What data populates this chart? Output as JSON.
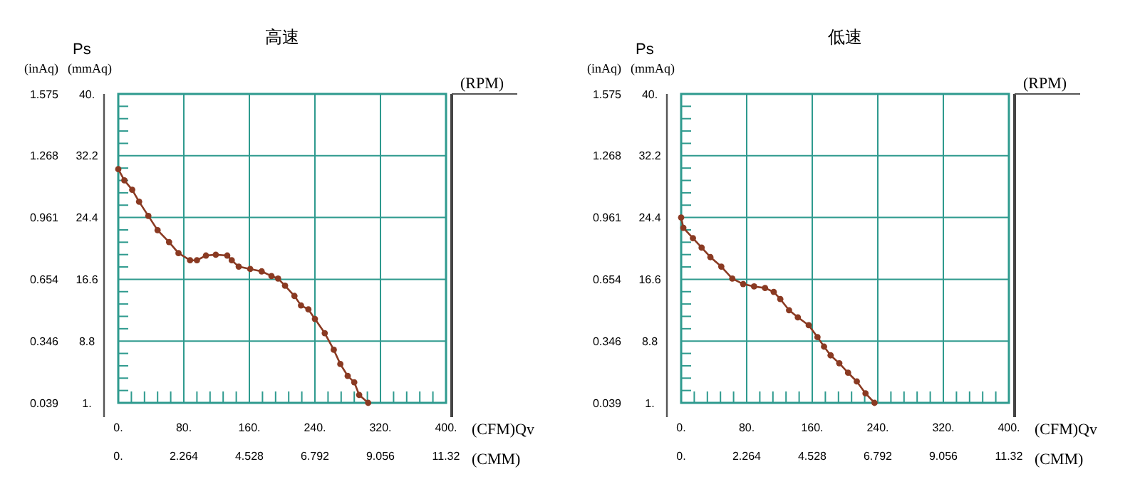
{
  "chart_data": [
    {
      "type": "line",
      "title": "高速",
      "xlabel": "(CFM)Qv",
      "x2label": "(CMM)",
      "ylabel": "(mmAq)",
      "y2label": "(inAq)",
      "annotations": [
        "Ps",
        "(RPM)"
      ],
      "grid": true,
      "marker": "circle",
      "line_style": "solid",
      "x": [
        0,
        7.4,
        17,
        25.4,
        36.7,
        48,
        62,
        73.5,
        87.6,
        96,
        107,
        119,
        133,
        138.5,
        147,
        161,
        175,
        187,
        195,
        203.5,
        215,
        223,
        232,
        240,
        252,
        263,
        271,
        280,
        288,
        294,
        305
      ],
      "series": [
        {
          "color": "#8a3a22",
          "values": [
            30.5,
            29.1,
            27.9,
            26.4,
            24.6,
            22.8,
            21.3,
            19.9,
            19.0,
            19.0,
            19.6,
            19.7,
            19.6,
            19.0,
            18.2,
            17.9,
            17.6,
            17.0,
            16.7,
            15.8,
            14.5,
            13.3,
            12.8,
            11.6,
            9.8,
            7.7,
            5.9,
            4.4,
            3.6,
            2.0,
            1.0
          ]
        }
      ],
      "xlim": [
        0,
        400
      ],
      "xticks": [
        {
          "value": 0,
          "label": "0."
        },
        {
          "value": 16,
          "label": null
        },
        {
          "value": 32,
          "label": null
        },
        {
          "value": 48,
          "label": null
        },
        {
          "value": 64,
          "label": null
        },
        {
          "value": 80,
          "label": "80."
        },
        {
          "value": 96,
          "label": null
        },
        {
          "value": 112,
          "label": null
        },
        {
          "value": 128,
          "label": null
        },
        {
          "value": 144,
          "label": null
        },
        {
          "value": 160,
          "label": "160."
        },
        {
          "value": 176,
          "label": null
        },
        {
          "value": 192,
          "label": null
        },
        {
          "value": 208,
          "label": null
        },
        {
          "value": 224,
          "label": null
        },
        {
          "value": 240,
          "label": "240."
        },
        {
          "value": 256,
          "label": null
        },
        {
          "value": 272,
          "label": null
        },
        {
          "value": 288,
          "label": null
        },
        {
          "value": 304,
          "label": null
        },
        {
          "value": 320,
          "label": "320."
        },
        {
          "value": 336,
          "label": null
        },
        {
          "value": 352,
          "label": null
        },
        {
          "value": 368,
          "label": null
        },
        {
          "value": 384,
          "label": null
        },
        {
          "value": 400,
          "label": "400."
        }
      ],
      "x2lim": [
        0,
        11.32
      ],
      "x2ticks": [
        {
          "value": 0,
          "label": "0."
        },
        2.264,
        4.528,
        6.792,
        9.056,
        11.32
      ],
      "ylim": [
        1,
        40
      ],
      "yticks": [
        {
          "value": 1,
          "label": "1."
        },
        {
          "value": 2.56,
          "label": null
        },
        {
          "value": 4.12,
          "label": null
        },
        {
          "value": 5.68,
          "label": null
        },
        {
          "value": 7.24,
          "label": null
        },
        8.8,
        {
          "value": 10.36,
          "label": null
        },
        {
          "value": 11.92,
          "label": null
        },
        {
          "value": 13.48,
          "label": null
        },
        {
          "value": 15.04,
          "label": null
        },
        16.6,
        {
          "value": 18.16,
          "label": null
        },
        {
          "value": 19.72,
          "label": null
        },
        {
          "value": 21.28,
          "label": null
        },
        {
          "value": 22.84,
          "label": null
        },
        24.4,
        {
          "value": 25.96,
          "label": null
        },
        {
          "value": 27.52,
          "label": null
        },
        {
          "value": 29.08,
          "label": null
        },
        {
          "value": 30.64,
          "label": null
        },
        32.2,
        {
          "value": 33.76,
          "label": null
        },
        {
          "value": 35.32,
          "label": null
        },
        {
          "value": 36.88,
          "label": null
        },
        {
          "value": 38.44,
          "label": null
        },
        {
          "value": 40,
          "label": "40."
        }
      ],
      "y2lim": [
        0.039,
        1.575
      ],
      "y2ticks": [
        0.039,
        0.346,
        0.654,
        0.961,
        1.268,
        1.575
      ]
    },
    {
      "type": "line",
      "title": "低速",
      "xlabel": "(CFM)Qv",
      "x2label": "(CMM)",
      "ylabel": "(mmAq)",
      "y2label": "(inAq)",
      "annotations": [
        "Ps",
        "(RPM)"
      ],
      "grid": true,
      "marker": "circle",
      "line_style": "solid",
      "x": [
        0,
        2.7,
        14.4,
        25,
        35.7,
        49,
        62.4,
        75.7,
        89,
        102.4,
        113,
        121,
        131.7,
        142.4,
        155.7,
        166.4,
        174.4,
        182.4,
        193,
        203.7,
        214.4,
        225,
        236
      ],
      "series": [
        {
          "color": "#8a3a22",
          "values": [
            24.4,
            23.1,
            21.8,
            20.6,
            19.4,
            18.2,
            16.7,
            16.0,
            15.7,
            15.5,
            15.0,
            14.1,
            12.7,
            11.8,
            10.8,
            9.3,
            8.1,
            7.0,
            6.0,
            4.8,
            3.7,
            2.2,
            1.0
          ]
        }
      ],
      "xlim": [
        0,
        400
      ],
      "xticks": [
        {
          "value": 0,
          "label": "0."
        },
        {
          "value": 16,
          "label": null
        },
        {
          "value": 32,
          "label": null
        },
        {
          "value": 48,
          "label": null
        },
        {
          "value": 64,
          "label": null
        },
        {
          "value": 80,
          "label": "80."
        },
        {
          "value": 96,
          "label": null
        },
        {
          "value": 112,
          "label": null
        },
        {
          "value": 128,
          "label": null
        },
        {
          "value": 144,
          "label": null
        },
        {
          "value": 160,
          "label": "160."
        },
        {
          "value": 176,
          "label": null
        },
        {
          "value": 192,
          "label": null
        },
        {
          "value": 208,
          "label": null
        },
        {
          "value": 224,
          "label": null
        },
        {
          "value": 240,
          "label": "240."
        },
        {
          "value": 256,
          "label": null
        },
        {
          "value": 272,
          "label": null
        },
        {
          "value": 288,
          "label": null
        },
        {
          "value": 304,
          "label": null
        },
        {
          "value": 320,
          "label": "320."
        },
        {
          "value": 336,
          "label": null
        },
        {
          "value": 352,
          "label": null
        },
        {
          "value": 368,
          "label": null
        },
        {
          "value": 384,
          "label": null
        },
        {
          "value": 400,
          "label": "400."
        }
      ],
      "x2lim": [
        0,
        11.32
      ],
      "x2ticks": [
        {
          "value": 0,
          "label": "0."
        },
        2.264,
        4.528,
        6.792,
        9.056,
        11.32
      ],
      "ylim": [
        1,
        40
      ],
      "yticks": [
        {
          "value": 1,
          "label": "1."
        },
        {
          "value": 2.56,
          "label": null
        },
        {
          "value": 4.12,
          "label": null
        },
        {
          "value": 5.68,
          "label": null
        },
        {
          "value": 7.24,
          "label": null
        },
        8.8,
        {
          "value": 10.36,
          "label": null
        },
        {
          "value": 11.92,
          "label": null
        },
        {
          "value": 13.48,
          "label": null
        },
        {
          "value": 15.04,
          "label": null
        },
        16.6,
        {
          "value": 18.16,
          "label": null
        },
        {
          "value": 19.72,
          "label": null
        },
        {
          "value": 21.28,
          "label": null
        },
        {
          "value": 22.84,
          "label": null
        },
        24.4,
        {
          "value": 25.96,
          "label": null
        },
        {
          "value": 27.52,
          "label": null
        },
        {
          "value": 29.08,
          "label": null
        },
        {
          "value": 30.64,
          "label": null
        },
        32.2,
        {
          "value": 33.76,
          "label": null
        },
        {
          "value": 35.32,
          "label": null
        },
        {
          "value": 36.88,
          "label": null
        },
        {
          "value": 38.44,
          "label": null
        },
        {
          "value": 40,
          "label": "40."
        }
      ],
      "y2lim": [
        0.039,
        1.575
      ],
      "y2ticks": [
        0.039,
        0.346,
        0.654,
        0.961,
        1.268,
        1.575
      ]
    }
  ]
}
